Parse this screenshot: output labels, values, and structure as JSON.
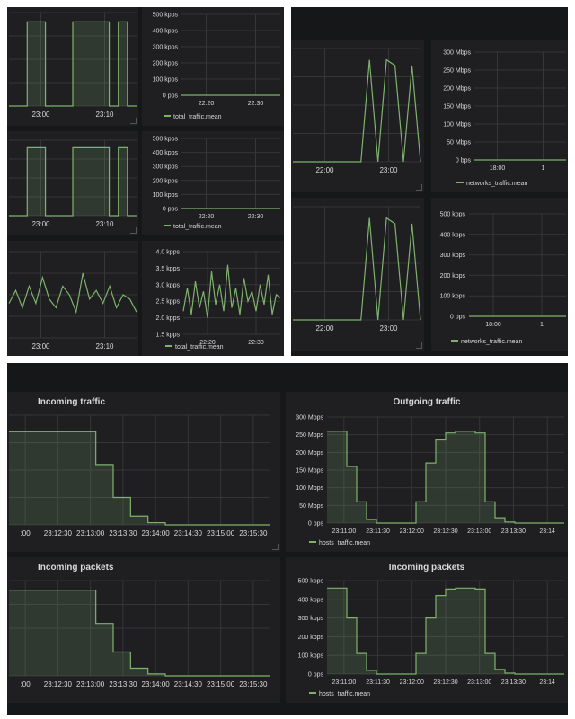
{
  "chart_data": [
    {
      "type": "area",
      "x_ticks": [
        "23:00",
        "23:10"
      ],
      "series": [
        {
          "values": [
            0,
            0,
            0.9,
            0.9,
            0,
            0,
            0,
            0.9,
            0.9,
            0.9,
            0.9,
            0,
            0.9,
            0,
            0
          ]
        }
      ]
    },
    {
      "type": "line",
      "y_ticks": [
        "500 kpps",
        "400 kpps",
        "300 kpps",
        "200 kpps",
        "100 kpps",
        "0 pps"
      ],
      "x_ticks": [
        "22:20",
        "22:30"
      ],
      "ylim": [
        0,
        500
      ],
      "series": [
        {
          "name": "total_traffic.mean",
          "values": [
            0,
            0,
            0,
            0,
            0,
            0,
            0,
            0,
            0,
            0
          ]
        }
      ]
    },
    {
      "type": "area",
      "x_ticks": [
        "23:00",
        "23:10"
      ],
      "series": [
        {
          "values": [
            0,
            0,
            0.9,
            0.9,
            0,
            0,
            0,
            0.9,
            0.9,
            0.9,
            0.9,
            0,
            0.9,
            0,
            0
          ]
        }
      ]
    },
    {
      "type": "line",
      "y_ticks": [
        "500 kpps",
        "400 kpps",
        "300 kpps",
        "200 kpps",
        "100 kpps",
        "0 pps"
      ],
      "x_ticks": [
        "22:20",
        "22:30"
      ],
      "ylim": [
        0,
        500
      ],
      "series": [
        {
          "name": "total_traffic.mean",
          "values": [
            0,
            0,
            0,
            0,
            0,
            0,
            0,
            0,
            0,
            0
          ]
        }
      ]
    },
    {
      "type": "line",
      "x_ticks": [
        "23:00",
        "23:10"
      ],
      "series": [
        {
          "values": [
            0.4,
            0.55,
            0.35,
            0.6,
            0.4,
            0.7,
            0.45,
            0.35,
            0.6,
            0.5,
            0.3,
            0.75,
            0.45,
            0.55,
            0.4,
            0.6,
            0.35,
            0.5,
            0.45,
            0.3
          ]
        }
      ]
    },
    {
      "type": "line",
      "y_ticks": [
        "4.0 kpps",
        "3.5 kpps",
        "3.0 kpps",
        "2.5 kpps",
        "2.0 kpps",
        "1.5 kpps"
      ],
      "x_ticks": [
        "22:20",
        "22:30"
      ],
      "ylim": [
        1.5,
        4.0
      ],
      "series": [
        {
          "name": "total_traffic.mean",
          "values": [
            2.2,
            2.9,
            2.1,
            3.1,
            2.3,
            2.8,
            2.0,
            3.4,
            2.4,
            3.0,
            2.2,
            3.6,
            2.3,
            2.9,
            2.1,
            3.2,
            2.5,
            2.8,
            2.2,
            3.0,
            2.4,
            3.3,
            2.1,
            2.7,
            2.6
          ]
        }
      ]
    },
    {
      "type": "line",
      "x_ticks": [
        "22:00",
        "23:00"
      ],
      "series": [
        {
          "values": [
            0,
            0,
            0,
            0,
            0,
            0,
            0,
            0,
            0,
            0.9,
            0,
            0.9,
            0.85,
            0,
            0.85,
            0
          ]
        }
      ]
    },
    {
      "type": "line",
      "y_ticks": [
        "300 Mbps",
        "250 Mbps",
        "200 Mbps",
        "150 Mbps",
        "100 Mbps",
        "50 Mbps",
        "0 bps"
      ],
      "x_ticks": [
        "18:00",
        "1"
      ],
      "ylim": [
        0,
        300
      ],
      "series": [
        {
          "name": "networks_traffic.mean",
          "values": [
            0,
            0,
            0,
            0,
            0,
            0
          ]
        }
      ]
    },
    {
      "type": "line",
      "x_ticks": [
        "22:00",
        "23:00"
      ],
      "series": [
        {
          "values": [
            0,
            0,
            0,
            0,
            0,
            0,
            0,
            0,
            0,
            0.9,
            0,
            0.9,
            0.85,
            0,
            0.85,
            0
          ]
        }
      ]
    },
    {
      "type": "line",
      "y_ticks": [
        "500 kpps",
        "400 kpps",
        "300 kpps",
        "200 kpps",
        "100 kpps",
        "0 pps"
      ],
      "x_ticks": [
        "18:00",
        "1"
      ],
      "ylim": [
        0,
        500
      ],
      "series": [
        {
          "name": "networks_traffic.mean",
          "values": [
            0,
            0,
            0,
            0,
            0,
            0
          ]
        }
      ]
    },
    {
      "type": "area",
      "title": "Incoming traffic",
      "x_ticks": [
        ":00",
        "23:12:30",
        "23:13:00",
        "23:13:30",
        "23:14:00",
        "23:14:30",
        "23:15:00",
        "23:15:30"
      ],
      "series": [
        {
          "values": [
            0.85,
            0.85,
            0.85,
            0.85,
            0.85,
            0.55,
            0.25,
            0.08,
            0.02,
            0,
            0,
            0,
            0,
            0,
            0,
            0
          ]
        }
      ]
    },
    {
      "type": "area",
      "title": "Outgoing traffic",
      "y_ticks": [
        "300 Mbps",
        "250 Mbps",
        "200 Mbps",
        "150 Mbps",
        "100 Mbps",
        "50 Mbps",
        "0 bps"
      ],
      "x_ticks": [
        "23:11:00",
        "23:11:30",
        "23:12:00",
        "23:12:30",
        "23:13:00",
        "23:13:30",
        "23:14"
      ],
      "ylim": [
        0,
        300
      ],
      "series": [
        {
          "name": "hosts_traffic.mean",
          "values": [
            260,
            260,
            160,
            60,
            10,
            0,
            0,
            0,
            0,
            60,
            170,
            235,
            255,
            260,
            260,
            255,
            60,
            15,
            3,
            0,
            0,
            0,
            0,
            0,
            0
          ]
        }
      ]
    },
    {
      "type": "area",
      "title": "Incoming packets",
      "x_ticks": [
        ":00",
        "23:12:30",
        "23:13:00",
        "23:13:30",
        "23:14:00",
        "23:14:30",
        "23:15:00",
        "23:15:30"
      ],
      "series": [
        {
          "values": [
            0.9,
            0.9,
            0.9,
            0.9,
            0.9,
            0.55,
            0.25,
            0.08,
            0.02,
            0,
            0,
            0,
            0,
            0,
            0,
            0
          ]
        }
      ]
    },
    {
      "type": "area",
      "title": "Incoming packets",
      "y_ticks": [
        "500 kpps",
        "400 kpps",
        "300 kpps",
        "200 kpps",
        "100 kpps",
        "0 pps"
      ],
      "x_ticks": [
        "23:11:00",
        "23:11:30",
        "23:12:00",
        "23:12:30",
        "23:13:00",
        "23:13:30",
        "23:14"
      ],
      "ylim": [
        0,
        500
      ],
      "series": [
        {
          "name": "hosts_traffic.mean",
          "values": [
            460,
            460,
            300,
            110,
            20,
            0,
            0,
            0,
            0,
            110,
            300,
            420,
            455,
            460,
            460,
            455,
            110,
            25,
            5,
            0,
            0,
            0,
            0,
            0,
            0
          ]
        }
      ]
    }
  ]
}
